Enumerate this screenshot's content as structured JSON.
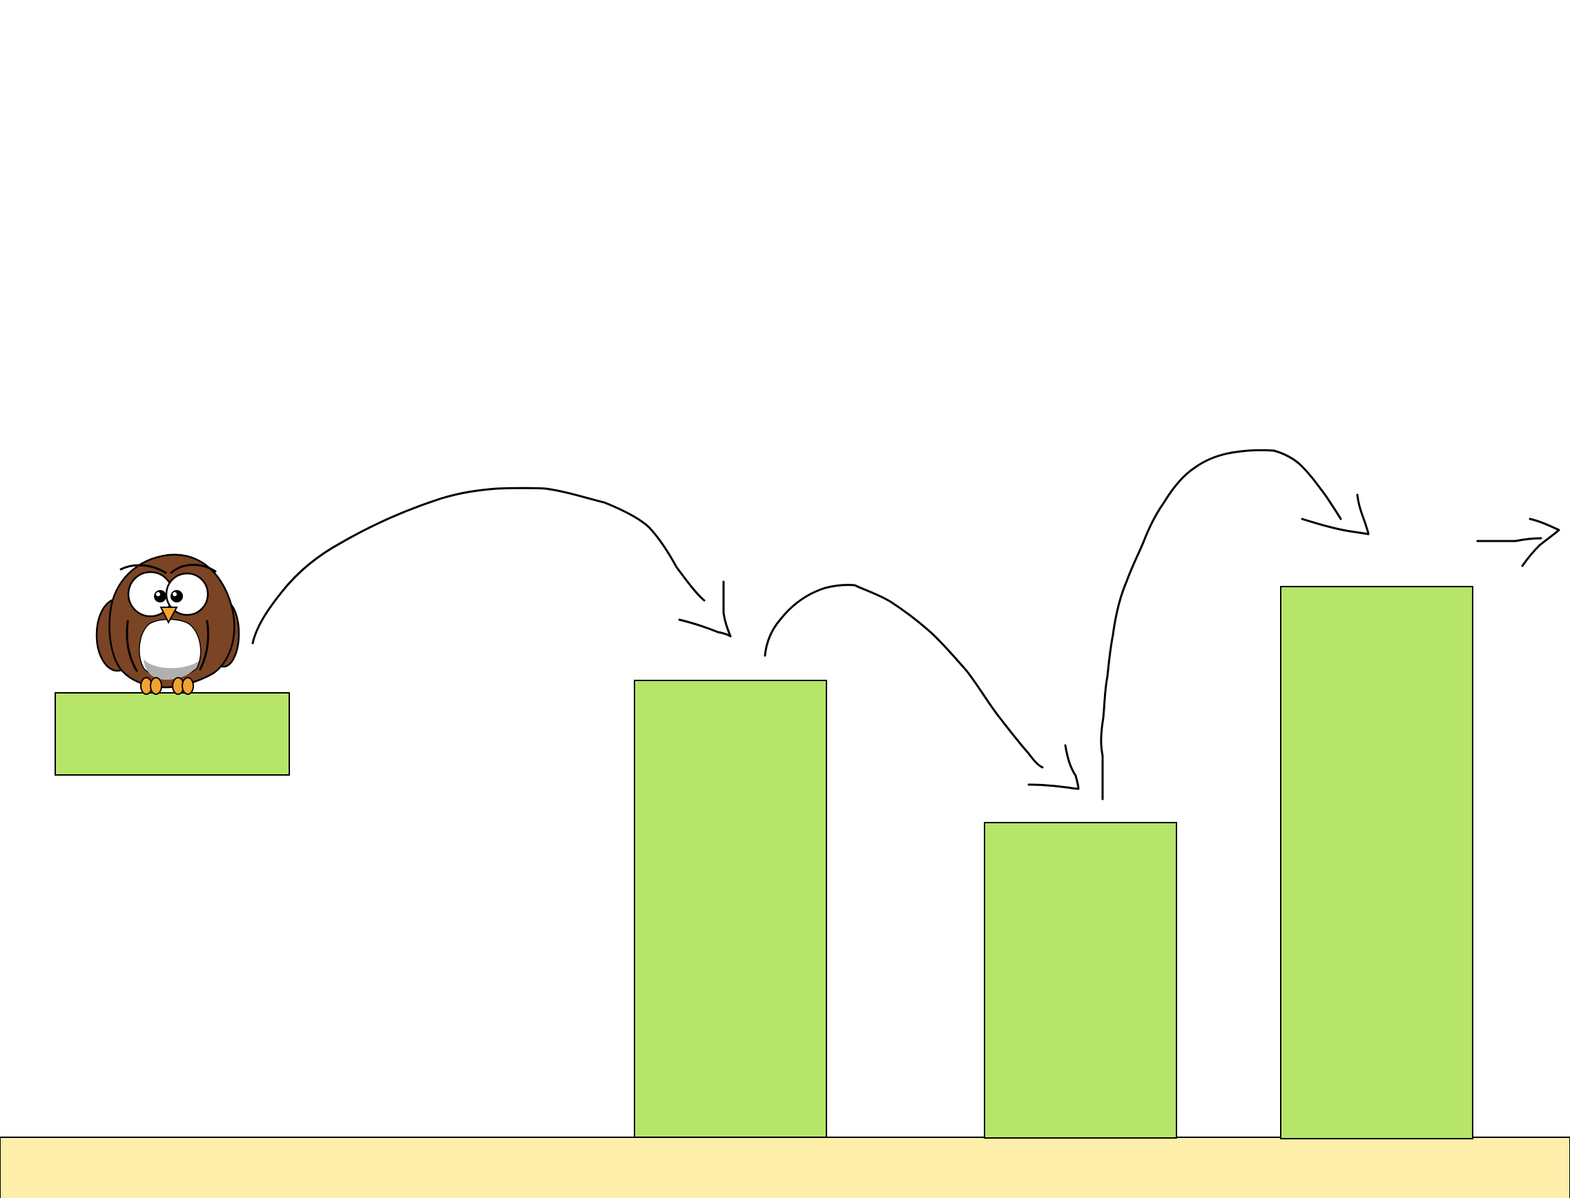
{
  "scene": {
    "background_color": "#ffffff",
    "ground_color": "#fdeeaa",
    "platform_color": "#b7e56a",
    "outline_color": "#000000"
  },
  "character": {
    "type": "owl",
    "body_color": "#7b4424",
    "belly_color": "#ffffff",
    "beak_color": "#f2a230",
    "feet_color": "#f2a230"
  },
  "platforms": [
    {
      "id": "start-ledge"
    },
    {
      "id": "pillar-1"
    },
    {
      "id": "pillar-2"
    },
    {
      "id": "pillar-3"
    }
  ],
  "jump_arrows": [
    {
      "from": "start-ledge",
      "to": "pillar-1"
    },
    {
      "from": "pillar-1",
      "to": "pillar-2"
    },
    {
      "from": "pillar-2",
      "to": "pillar-3"
    },
    {
      "from": "pillar-3",
      "to": "off-screen-right"
    }
  ]
}
